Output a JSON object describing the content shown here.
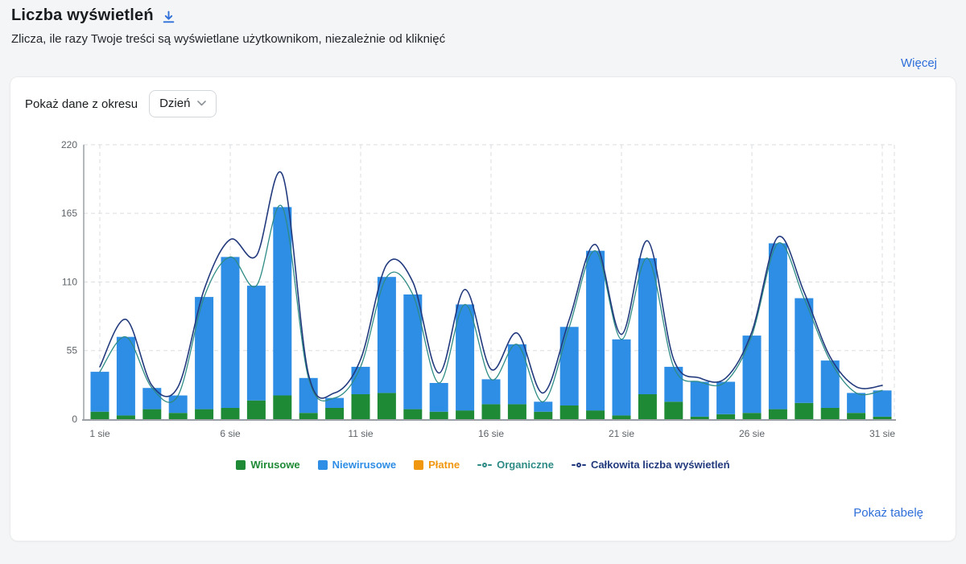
{
  "header": {
    "title": "Liczba wyświetleń",
    "subtitle": "Zlicza, ile razy Twoje treści są wyświetlane użytkownikom, niezależnie od kliknięć",
    "more_link": "Więcej"
  },
  "card": {
    "period_label": "Pokaż dane z okresu",
    "period_value": "Dzień",
    "show_table_link": "Pokaż tabelę"
  },
  "icons": {
    "title_icon": "download-icon",
    "dropdown_icon": "chevron-down-icon"
  },
  "colors": {
    "link_blue": "#2e6fd9",
    "bar_green": "#1e8a35",
    "bar_blue": "#2e8de4",
    "paid_orange": "#f0960f",
    "organic_teal": "#2e8b85",
    "total_navy": "#223a7d",
    "axis_text": "#5d6369",
    "axis_line": "#9aa0a5",
    "grid_line": "#dbdee1"
  },
  "chart_data": {
    "type": "bar",
    "title": "Liczba wyświetleń",
    "xlabel": "",
    "ylabel": "",
    "ylim": [
      0,
      220
    ],
    "yticks": [
      0,
      55,
      110,
      165,
      220
    ],
    "grid": "dashed",
    "legend_position": "bottom",
    "tick_positions": [
      0,
      5,
      10,
      15,
      20,
      25,
      30
    ],
    "tick_labels": [
      "1 sie",
      "6 sie",
      "11 sie",
      "16 sie",
      "21 sie",
      "26 sie",
      "31 sie"
    ],
    "series": [
      {
        "name": "Wirusowe",
        "type": "bar-stack",
        "color": "#1e8a35",
        "values": [
          6,
          3,
          8,
          5,
          8,
          9,
          15,
          19,
          5,
          9,
          20,
          21,
          8,
          6,
          7,
          12,
          12,
          6,
          11,
          7,
          3,
          20,
          14,
          2,
          4,
          5,
          8,
          13,
          9,
          5,
          2
        ]
      },
      {
        "name": "Niewirusowe",
        "type": "bar-stack",
        "color": "#2e8de4",
        "values": [
          32,
          63,
          17,
          14,
          90,
          121,
          92,
          151,
          28,
          8,
          22,
          93,
          92,
          23,
          85,
          20,
          48,
          8,
          63,
          128,
          61,
          109,
          28,
          28,
          26,
          62,
          133,
          84,
          38,
          16,
          21
        ]
      },
      {
        "name": "Płatne",
        "type": "bar-stack",
        "color": "#f0960f",
        "values": [
          0,
          0,
          0,
          0,
          0,
          0,
          0,
          0,
          0,
          0,
          0,
          0,
          0,
          0,
          0,
          0,
          0,
          0,
          0,
          0,
          0,
          0,
          0,
          0,
          0,
          0,
          0,
          0,
          0,
          0,
          0
        ]
      },
      {
        "name": "Organiczne",
        "type": "line",
        "color": "#2e8b85",
        "values": [
          38,
          66,
          25,
          19,
          98,
          130,
          107,
          170,
          33,
          17,
          42,
          114,
          100,
          29,
          92,
          32,
          60,
          14,
          74,
          135,
          64,
          129,
          42,
          30,
          30,
          67,
          141,
          97,
          47,
          21,
          23
        ]
      },
      {
        "name": "Całkowita liczba wyświetleń",
        "type": "line",
        "color": "#223a7d",
        "values": [
          42,
          80,
          27,
          26,
          104,
          144,
          131,
          196,
          36,
          21,
          48,
          124,
          110,
          37,
          104,
          40,
          69,
          21,
          80,
          140,
          68,
          143,
          48,
          33,
          33,
          70,
          146,
          102,
          50,
          26,
          27
        ]
      }
    ]
  }
}
